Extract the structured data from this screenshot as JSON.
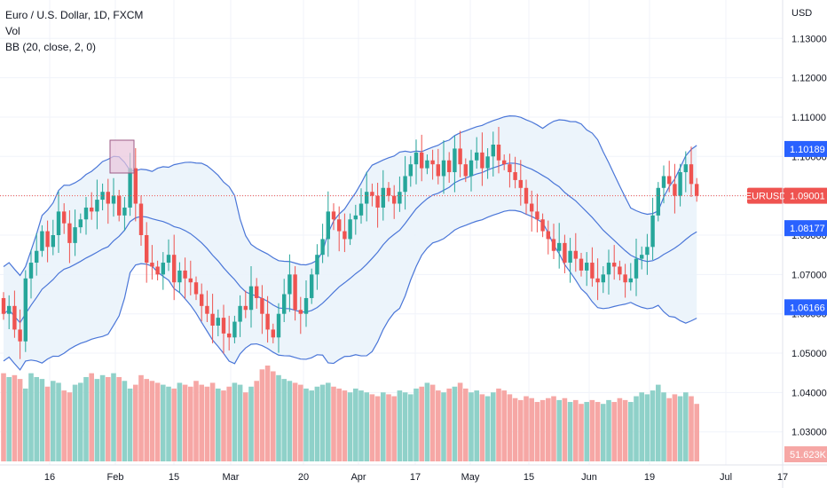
{
  "legend": {
    "symbol_line": "Euro / U.S. Dollar, 1D, FXCM",
    "vol_line": "Vol",
    "bb_line": "BB (20, close, 2, 0)"
  },
  "colors": {
    "up": "#26a69a",
    "down": "#ef5350",
    "vol_up": "#8fd1c9",
    "vol_down": "#f6a7a5",
    "band": "#4a76d8",
    "band_fill": "#eaf3fb",
    "price_line": "#ef5350",
    "highlight_fill": "#e9c4dc",
    "highlight_stroke": "#9c5b86",
    "grid": "#f0f3fa",
    "axis_text": "#131722"
  },
  "chart_data": {
    "type": "candlestick",
    "currency": "USD",
    "x_tick_labels": [
      "16",
      "Feb",
      "15",
      "Mar",
      "20",
      "Apr",
      "17",
      "May",
      "15",
      "Jun",
      "19",
      "Jul",
      "17"
    ],
    "y_tick_labels": [
      "1.13000",
      "1.12000",
      "1.11000",
      "1.10000",
      "1.09000",
      "1.08000",
      "1.07000",
      "1.06000",
      "1.05000",
      "1.04000",
      "1.03000"
    ],
    "y_ticks": [
      1.13,
      1.12,
      1.11,
      1.1,
      1.09,
      1.08,
      1.07,
      1.06,
      1.05,
      1.04,
      1.03
    ],
    "ylim": [
      1.0225,
      1.1375
    ],
    "price_labels": [
      {
        "text": "1.10189",
        "value": 1.10189,
        "bg": "#2962ff",
        "name": "bb-upper-label"
      },
      {
        "text": "1.09001",
        "value": 1.09001,
        "bg": "#ef5350",
        "name": "last-price-label"
      },
      {
        "text": "1.08177",
        "value": 1.08177,
        "bg": "#2962ff",
        "name": "bb-basis-label"
      },
      {
        "text": "1.06166",
        "value": 1.06166,
        "bg": "#2962ff",
        "name": "bb-lower-label"
      }
    ],
    "symbol_tag": "EURUSD",
    "last_price": 1.09001,
    "volume_label": "51.623K",
    "close": [
      1.06,
      1.062,
      1.056,
      1.053,
      1.069,
      1.073,
      1.076,
      1.081,
      1.077,
      1.08,
      1.086,
      1.083,
      1.078,
      1.082,
      1.084,
      1.087,
      1.086,
      1.089,
      1.091,
      1.088,
      1.09,
      1.085,
      1.087,
      1.097,
      1.088,
      1.08,
      1.073,
      1.072,
      1.07,
      1.073,
      1.075,
      1.068,
      1.071,
      1.069,
      1.068,
      1.065,
      1.062,
      1.06,
      1.057,
      1.059,
      1.055,
      1.054,
      1.058,
      1.062,
      1.061,
      1.067,
      1.064,
      1.06,
      1.056,
      1.054,
      1.06,
      1.065,
      1.07,
      1.061,
      1.06,
      1.064,
      1.07,
      1.075,
      1.079,
      1.086,
      1.084,
      1.081,
      1.079,
      1.084,
      1.085,
      1.088,
      1.091,
      1.09,
      1.087,
      1.092,
      1.09,
      1.088,
      1.091,
      1.095,
      1.098,
      1.101,
      1.097,
      1.099,
      1.098,
      1.095,
      1.099,
      1.096,
      1.102,
      1.098,
      1.095,
      1.099,
      1.101,
      1.097,
      1.1,
      1.103,
      1.099,
      1.098,
      1.096,
      1.094,
      1.092,
      1.088,
      1.086,
      1.084,
      1.081,
      1.079,
      1.076,
      1.078,
      1.073,
      1.076,
      1.074,
      1.071,
      1.073,
      1.069,
      1.068,
      1.07,
      1.073,
      1.072,
      1.07,
      1.068,
      1.069,
      1.074,
      1.075,
      1.077,
      1.085,
      1.092,
      1.095,
      1.093,
      1.09,
      1.096,
      1.098,
      1.093,
      1.09
    ],
    "volume": [
      46,
      44,
      45,
      43,
      38,
      46,
      44,
      43,
      39,
      42,
      41,
      37,
      36,
      40,
      41,
      44,
      46,
      43,
      45,
      44,
      46,
      44,
      42,
      38,
      40,
      45,
      43,
      42,
      41,
      40,
      39,
      38,
      41,
      40,
      39,
      42,
      40,
      39,
      41,
      38,
      37,
      39,
      41,
      40,
      36,
      39,
      42,
      48,
      50,
      47,
      45,
      43,
      42,
      41,
      40,
      38,
      37,
      39,
      40,
      41,
      39,
      38,
      37,
      36,
      38,
      37,
      36,
      35,
      34,
      36,
      35,
      34,
      37,
      36,
      35,
      38,
      39,
      41,
      40,
      37,
      36,
      38,
      39,
      41,
      38,
      36,
      37,
      35,
      34,
      36,
      38,
      37,
      35,
      33,
      32,
      34,
      33,
      31,
      32,
      33,
      34,
      32,
      33,
      31,
      32,
      30,
      31,
      32,
      31,
      30,
      32,
      31,
      33,
      32,
      31,
      34,
      36,
      35,
      37,
      40,
      36,
      33,
      35,
      34,
      36,
      34,
      30
    ]
  }
}
